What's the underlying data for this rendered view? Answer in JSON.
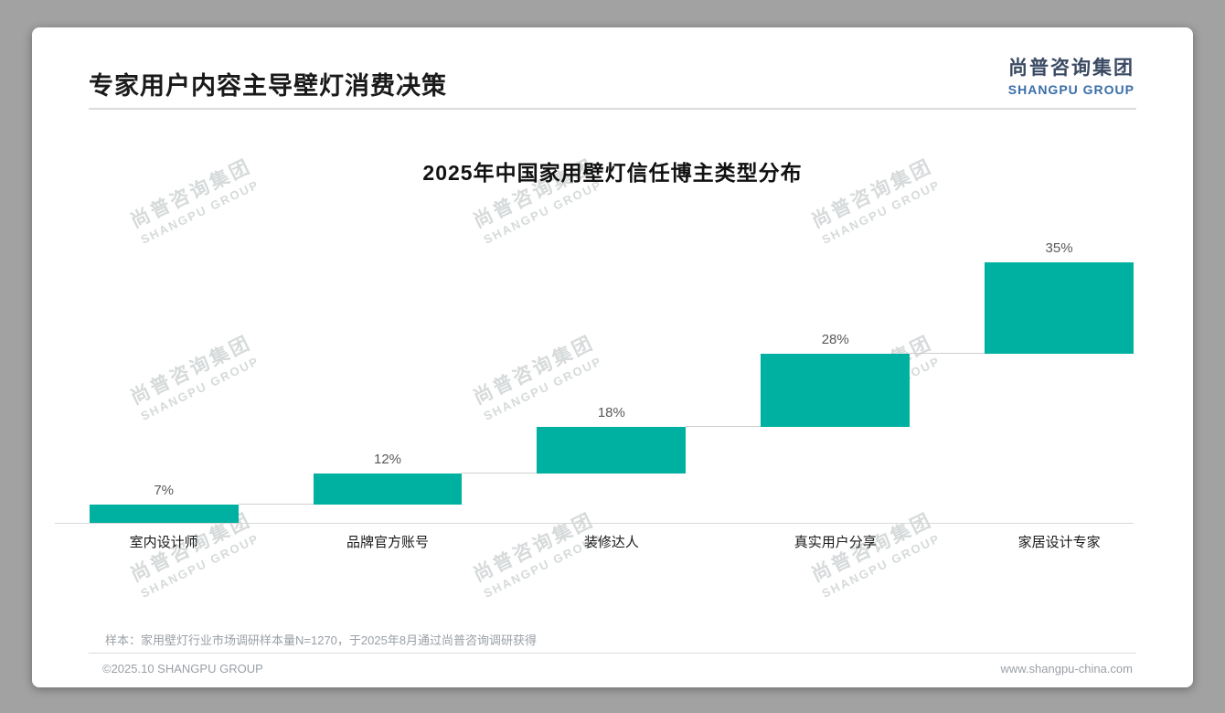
{
  "page": {
    "title": "专家用户内容主导壁灯消费决策",
    "footer_note": "样本：家用壁灯行业市场调研样本量N=1270，于2025年8月通过尚普咨询调研获得",
    "footer_left": "©2025.10 SHANGPU GROUP",
    "footer_right": "www.shangpu-china.com"
  },
  "logo": {
    "cn": "尚普咨询集团",
    "en": "SHANGPU GROUP"
  },
  "watermark": {
    "line1": "尚普咨询集团",
    "line2": "SHANGPU GROUP"
  },
  "chart_data": {
    "type": "bar",
    "subtype": "waterfall-step",
    "title": "2025年中国家用壁灯信任博主类型分布",
    "categories": [
      "室内设计师",
      "品牌官方账号",
      "装修达人",
      "真实用户分享",
      "家居设计专家"
    ],
    "values": [
      7,
      12,
      18,
      28,
      35
    ],
    "value_labels": [
      "7%",
      "12%",
      "18%",
      "28%",
      "35%"
    ],
    "cumulative": [
      7,
      19,
      37,
      65,
      100
    ],
    "bar_color": "#00b0a0",
    "connector_color": "#cfcfcf",
    "ylim": [
      0,
      100
    ],
    "grid": false,
    "legend": false,
    "xlabel": "",
    "ylabel": ""
  }
}
